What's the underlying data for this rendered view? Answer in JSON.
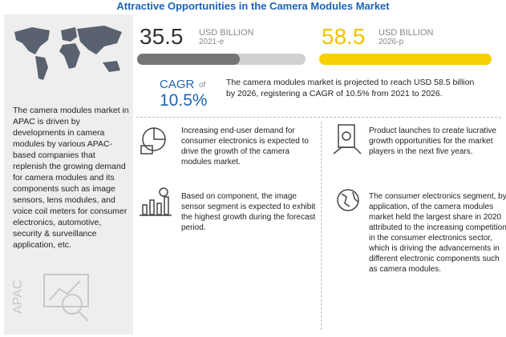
{
  "header": {
    "title": "Attractive Opportunities in the Camera Modules Market"
  },
  "sidebar": {
    "text": "The camera modules market in APAC is driven by developments in camera modules by various APAC-based companies that replenish the growing demand for camera modules and its components such as image sensors, lens modules, and voice coil meters for consumer electronics, automotive, security & surveillance application, etc.",
    "region": "APAC"
  },
  "stats": [
    {
      "value": "35.5",
      "unit": "USD BILLION",
      "year": "2021-e"
    },
    {
      "value": "58.5",
      "unit": "USD BILLION",
      "year": "2026-p"
    }
  ],
  "cagr": {
    "label": "CAGR",
    "of": "of",
    "value": "10.5%",
    "text": "The camera modules market is projected to reach USD 58.5 billion by 2026, registering a CAGR of 10.5% from 2021 to 2026."
  },
  "highlights": [
    "Increasing end-user demand for consumer electronics is expected to drive the growth of the camera modules market.",
    "Product launches to create lucrative growth opportunities for the market players in the next five years.",
    "Based on component, the image sensor segment is expected to exhibit the highest growth during the forecast period.",
    "The consumer electronics segment, by application, of the camera modules market held the largest share in 2020 attributed to the increasing competition in the consumer electronics sector, which is driving the advancements in different electronic components such as camera modules."
  ]
}
